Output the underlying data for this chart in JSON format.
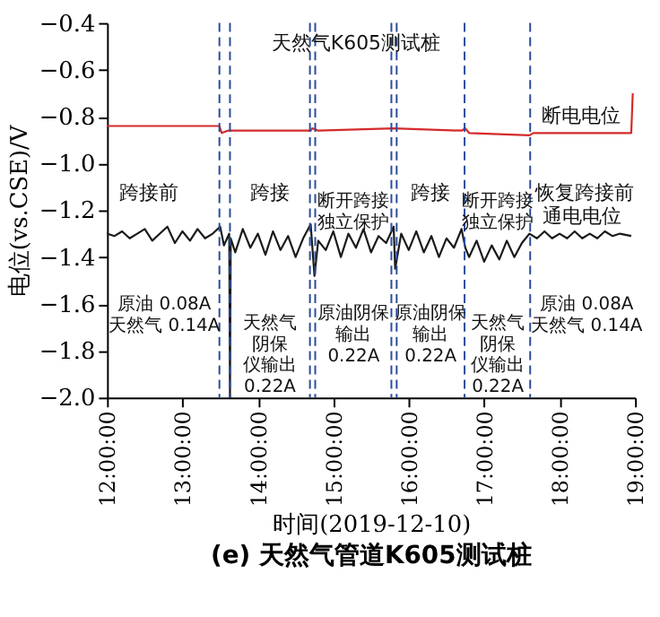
{
  "chart_data": {
    "type": "line",
    "title": "(e) 天然气管道K605测试桩",
    "xlabel": "时间(2019-12-10)",
    "ylabel": "电位(vs.CSE)/V",
    "xlim": [
      12,
      19
    ],
    "xticks": [
      {
        "value": 12,
        "label": "12:00:00"
      },
      {
        "value": 13,
        "label": "13:00:00"
      },
      {
        "value": 14,
        "label": "14:00:00"
      },
      {
        "value": 15,
        "label": "15:00:00"
      },
      {
        "value": 16,
        "label": "16:00:00"
      },
      {
        "value": 17,
        "label": "17:00:00"
      },
      {
        "value": 18,
        "label": "18:00:00"
      },
      {
        "value": 19,
        "label": "19:00:00"
      }
    ],
    "ylim": [
      -2.0,
      -0.4
    ],
    "yticks": [
      {
        "value": -2.0,
        "label": "−2.0"
      },
      {
        "value": -1.8,
        "label": "−1.8"
      },
      {
        "value": -1.6,
        "label": "−1.6"
      },
      {
        "value": -1.4,
        "label": "−1.4"
      },
      {
        "value": -1.2,
        "label": "−1.2"
      },
      {
        "value": -1.0,
        "label": "−1.0"
      },
      {
        "value": -0.8,
        "label": "−0.8"
      },
      {
        "value": -0.6,
        "label": "−0.6"
      },
      {
        "value": -0.4,
        "label": "−0.4"
      }
    ],
    "grid": false,
    "marker": "none",
    "line_style": "solid",
    "series": [
      {
        "color": "#d42a2a",
        "x": [
          12.0,
          13.0,
          13.49,
          13.52,
          13.6,
          14.0,
          14.7,
          14.72,
          14.8,
          15.8,
          16.7,
          16.75,
          16.8,
          17.6,
          17.65,
          18.95,
          18.97
        ],
        "values": [
          -0.84,
          -0.84,
          -0.84,
          -0.87,
          -0.86,
          -0.86,
          -0.86,
          -0.85,
          -0.86,
          -0.85,
          -0.86,
          -0.85,
          -0.87,
          -0.88,
          -0.87,
          -0.87,
          -0.7
        ]
      },
      {
        "color": "#1a1a1a",
        "x": [
          12.0,
          12.1,
          12.2,
          12.3,
          12.4,
          12.5,
          12.6,
          12.7,
          12.8,
          12.9,
          13.0,
          13.1,
          13.2,
          13.3,
          13.4,
          13.5,
          13.55,
          13.62,
          13.63,
          13.64,
          13.7,
          13.8,
          13.9,
          14.0,
          14.1,
          14.2,
          14.3,
          14.4,
          14.5,
          14.6,
          14.7,
          14.75,
          14.8,
          14.9,
          15.0,
          15.1,
          15.2,
          15.3,
          15.4,
          15.5,
          15.6,
          15.7,
          15.8,
          15.82,
          15.9,
          16.0,
          16.1,
          16.2,
          16.3,
          16.4,
          16.5,
          16.6,
          16.7,
          16.75,
          16.8,
          16.9,
          17.0,
          17.1,
          17.2,
          17.3,
          17.4,
          17.5,
          17.6,
          17.7,
          17.8,
          17.9,
          18.0,
          18.1,
          18.2,
          18.3,
          18.4,
          18.5,
          18.6,
          18.7,
          18.8,
          18.95
        ],
        "values": [
          -1.3,
          -1.31,
          -1.29,
          -1.32,
          -1.3,
          -1.28,
          -1.33,
          -1.3,
          -1.27,
          -1.34,
          -1.29,
          -1.33,
          -1.28,
          -1.32,
          -1.3,
          -1.27,
          -1.35,
          -1.3,
          -2.0,
          -1.32,
          -1.38,
          -1.28,
          -1.36,
          -1.3,
          -1.39,
          -1.29,
          -1.37,
          -1.31,
          -1.4,
          -1.32,
          -1.26,
          -1.48,
          -1.33,
          -1.37,
          -1.29,
          -1.4,
          -1.3,
          -1.36,
          -1.28,
          -1.38,
          -1.31,
          -1.34,
          -1.27,
          -1.45,
          -1.3,
          -1.37,
          -1.29,
          -1.38,
          -1.31,
          -1.4,
          -1.32,
          -1.36,
          -1.28,
          -1.36,
          -1.4,
          -1.33,
          -1.42,
          -1.35,
          -1.41,
          -1.33,
          -1.4,
          -1.34,
          -1.3,
          -1.32,
          -1.29,
          -1.32,
          -1.3,
          -1.32,
          -1.29,
          -1.32,
          -1.3,
          -1.32,
          -1.29,
          -1.31,
          -1.3,
          -1.31
        ]
      }
    ],
    "ref_lines": [
      {
        "axis": "x",
        "value": 13.49,
        "color": "#2b4c9a",
        "line_style": "dashed"
      },
      {
        "axis": "x",
        "value": 13.63,
        "color": "#2b4c9a",
        "line_style": "dashed"
      },
      {
        "axis": "x",
        "value": 14.69,
        "color": "#2b4c9a",
        "line_style": "dashed"
      },
      {
        "axis": "x",
        "value": 14.76,
        "color": "#2b4c9a",
        "line_style": "dashed"
      },
      {
        "axis": "x",
        "value": 15.77,
        "color": "#2b4c9a",
        "line_style": "dashed"
      },
      {
        "axis": "x",
        "value": 15.84,
        "color": "#2b4c9a",
        "line_style": "dashed"
      },
      {
        "axis": "x",
        "value": 16.74,
        "color": "#2b4c9a",
        "line_style": "dashed"
      },
      {
        "axis": "x",
        "value": 17.61,
        "color": "#2b4c9a",
        "line_style": "dashed"
      }
    ],
    "annotations": [
      "天然气K605测试桩",
      "断电电位",
      "通电电位",
      "跨接前",
      "跨接",
      "断开跨接独立保护",
      "跨接",
      "断开跨接独立保护",
      "恢复跨接前",
      "原油 0.08A天然气 0.14A",
      "天然气阴保仪输出0.22A",
      "原油阴保输出0.22A",
      "原油阴保输出0.22A",
      "天然气阴保仪输出0.22A",
      "原油 0.08A天然气 0.14A"
    ]
  }
}
